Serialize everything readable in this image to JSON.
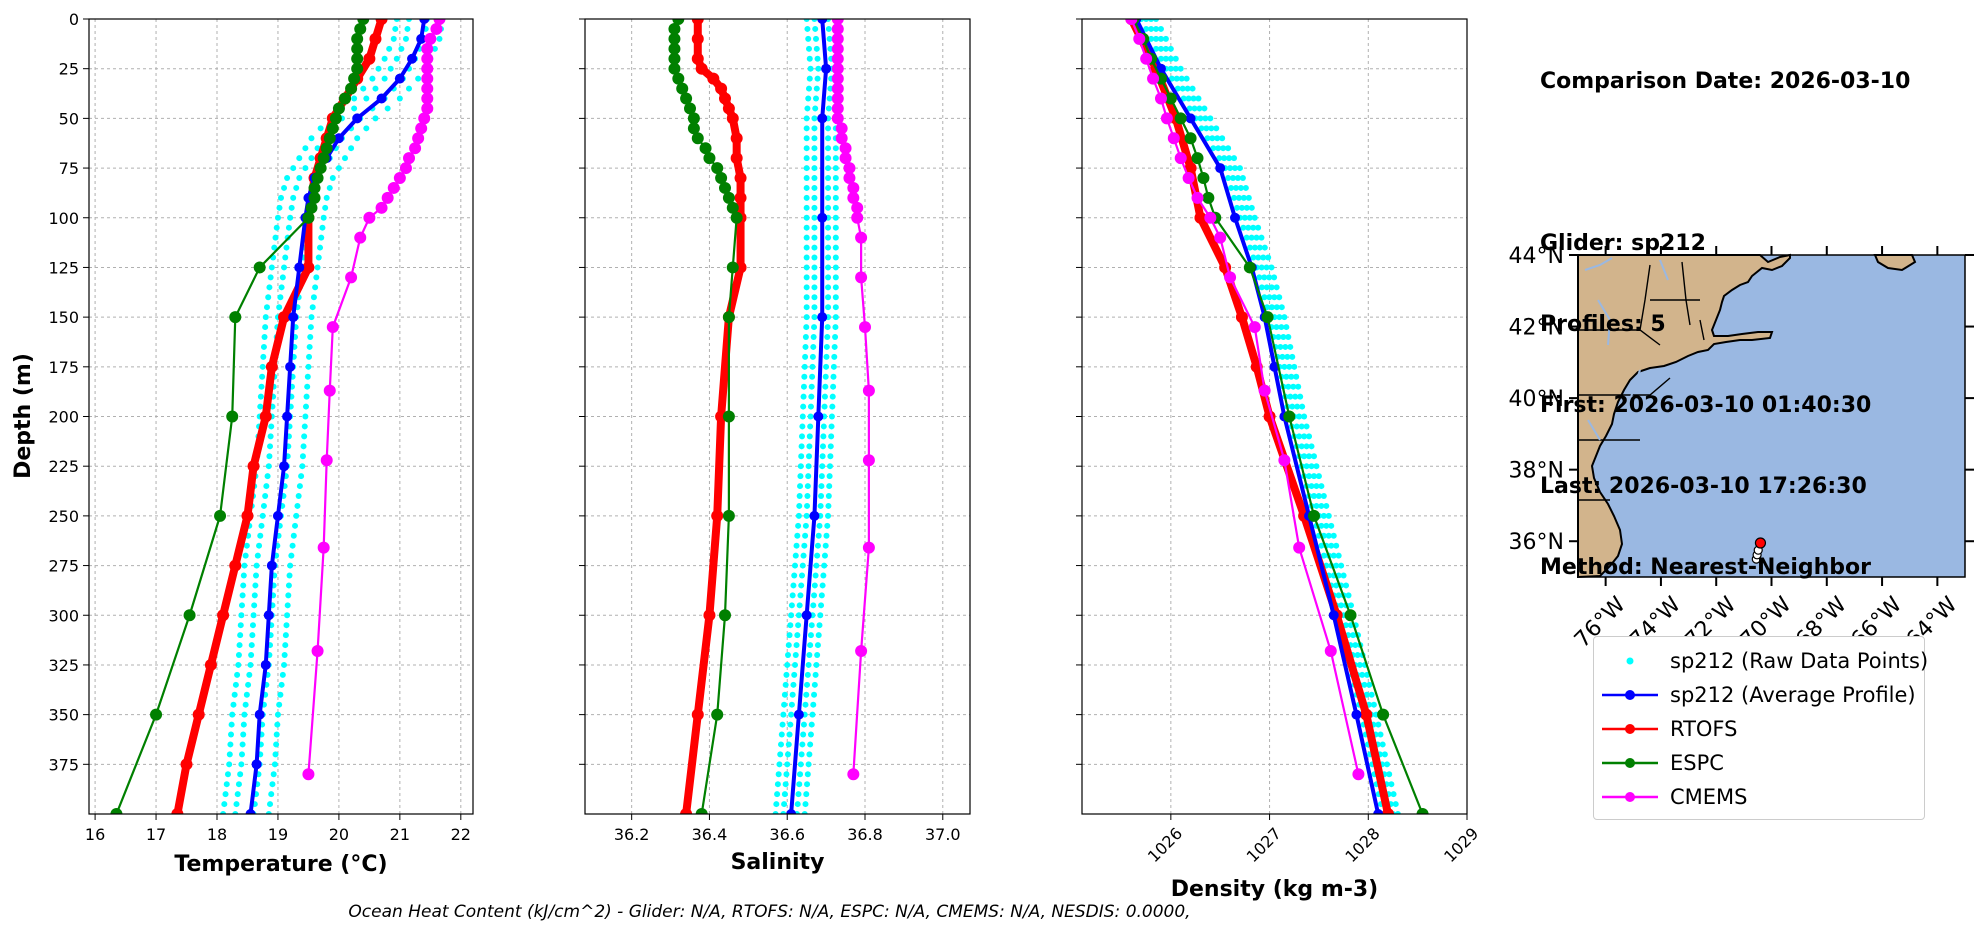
{
  "info": {
    "comparison_date": "Comparison Date: 2026-03-10",
    "glider": "Glider: sp212",
    "profiles": "Profiles: 5",
    "first": "First: 2026-03-10 01:40:30",
    "last": "Last: 2026-03-10 17:26:30",
    "method": "Method: Nearest-Neighbor"
  },
  "footer": "Ocean Heat Content (kJ/cm^2) - Glider: N/A,  RTOFS: N/A,  ESPC: N/A,  CMEMS: N/A,  NESDIS: 0.0000,",
  "colors": {
    "raw": "#00ffff",
    "avg": "#0000ff",
    "rtofs": "#ff0000",
    "espc": "#008000",
    "cmems": "#ff00ff",
    "land": "#d2b48c",
    "ocean": "#9ab8e2"
  },
  "legend": [
    {
      "key": "raw",
      "label": "sp212 (Raw Data Points)"
    },
    {
      "key": "avg",
      "label": "sp212 (Average Profile)"
    },
    {
      "key": "rtofs",
      "label": "RTOFS"
    },
    {
      "key": "espc",
      "label": "ESPC"
    },
    {
      "key": "cmems",
      "label": "CMEMS"
    }
  ],
  "chart_data": [
    {
      "type": "line",
      "xlabel": "Temperature (°C)",
      "ylabel": "Depth (m)",
      "xlim": [
        15.9,
        22.2
      ],
      "ylim": [
        400,
        0
      ],
      "xticks": [
        "16",
        "17",
        "18",
        "19",
        "20",
        "21",
        "22"
      ],
      "yticks": [
        "0",
        "25",
        "50",
        "75",
        "100",
        "125",
        "150",
        "175",
        "200",
        "225",
        "250",
        "275",
        "300",
        "325",
        "350",
        "375"
      ],
      "grid": true,
      "series": [
        {
          "name": "sp212 (Average Profile)",
          "key": "avg",
          "depth": [
            0,
            10,
            20,
            30,
            40,
            50,
            60,
            70,
            80,
            90,
            100,
            125,
            150,
            175,
            200,
            225,
            250,
            275,
            300,
            325,
            350,
            375,
            400
          ],
          "values": [
            21.4,
            21.35,
            21.2,
            21.0,
            20.7,
            20.3,
            20.0,
            19.8,
            19.6,
            19.5,
            19.45,
            19.35,
            19.25,
            19.2,
            19.15,
            19.1,
            19.0,
            18.9,
            18.85,
            18.8,
            18.7,
            18.65,
            18.55
          ]
        },
        {
          "name": "RTOFS",
          "key": "rtofs",
          "depth": [
            0,
            10,
            20,
            30,
            40,
            50,
            60,
            70,
            80,
            90,
            100,
            125,
            150,
            175,
            200,
            225,
            250,
            275,
            300,
            325,
            350,
            375,
            400
          ],
          "values": [
            20.7,
            20.6,
            20.5,
            20.3,
            20.1,
            19.9,
            19.8,
            19.7,
            19.6,
            19.55,
            19.5,
            19.5,
            19.1,
            18.9,
            18.8,
            18.6,
            18.5,
            18.3,
            18.1,
            17.9,
            17.7,
            17.5,
            17.35
          ]
        },
        {
          "name": "ESPC",
          "key": "espc",
          "depth": [
            0,
            5,
            10,
            15,
            20,
            25,
            30,
            35,
            40,
            45,
            50,
            55,
            60,
            65,
            70,
            75,
            80,
            85,
            90,
            95,
            100,
            125,
            150,
            200,
            250,
            300,
            350,
            400
          ],
          "values": [
            20.4,
            20.35,
            20.3,
            20.3,
            20.3,
            20.3,
            20.25,
            20.2,
            20.1,
            20.0,
            19.95,
            19.9,
            19.85,
            19.8,
            19.75,
            19.7,
            19.65,
            19.6,
            19.6,
            19.55,
            19.5,
            18.7,
            18.3,
            18.25,
            18.05,
            17.55,
            17.0,
            16.35
          ]
        },
        {
          "name": "CMEMS",
          "key": "cmems",
          "depth": [
            0,
            5,
            10,
            15,
            20,
            25,
            30,
            35,
            40,
            45,
            50,
            55,
            60,
            65,
            70,
            75,
            80,
            85,
            90,
            95,
            100,
            110,
            130,
            155,
            187,
            222,
            266,
            318,
            380
          ],
          "values": [
            21.65,
            21.6,
            21.5,
            21.45,
            21.45,
            21.45,
            21.45,
            21.45,
            21.45,
            21.45,
            21.4,
            21.35,
            21.3,
            21.25,
            21.15,
            21.1,
            21.0,
            20.9,
            20.8,
            20.7,
            20.5,
            20.35,
            20.2,
            19.9,
            19.85,
            19.8,
            19.75,
            19.65,
            19.5
          ]
        }
      ],
      "raw_offsets": [
        -0.45,
        -0.25,
        0.05,
        0.3
      ]
    },
    {
      "type": "line",
      "xlabel": "Salinity",
      "ylabel": "",
      "xlim": [
        36.08,
        37.07
      ],
      "ylim": [
        400,
        0
      ],
      "xticks": [
        "36.2",
        "36.4",
        "36.6",
        "36.8",
        "37.0"
      ],
      "grid": true,
      "series": [
        {
          "name": "sp212 (Average Profile)",
          "key": "avg",
          "depth": [
            0,
            25,
            50,
            100,
            150,
            200,
            250,
            300,
            350,
            400
          ],
          "values": [
            36.69,
            36.7,
            36.69,
            36.69,
            36.69,
            36.68,
            36.67,
            36.65,
            36.63,
            36.61
          ]
        },
        {
          "name": "RTOFS",
          "key": "rtofs",
          "depth": [
            0,
            10,
            20,
            25,
            30,
            35,
            40,
            45,
            50,
            60,
            70,
            80,
            90,
            100,
            125,
            150,
            200,
            250,
            300,
            350,
            400
          ],
          "values": [
            36.37,
            36.37,
            36.37,
            36.38,
            36.41,
            36.43,
            36.44,
            36.45,
            36.46,
            36.47,
            36.47,
            36.48,
            36.48,
            36.48,
            36.48,
            36.45,
            36.43,
            36.42,
            36.4,
            36.37,
            36.34
          ]
        },
        {
          "name": "ESPC",
          "key": "espc",
          "depth": [
            0,
            5,
            10,
            15,
            20,
            25,
            30,
            35,
            40,
            45,
            50,
            55,
            60,
            65,
            70,
            75,
            80,
            85,
            90,
            95,
            100,
            125,
            150,
            200,
            250,
            300,
            350,
            400
          ],
          "values": [
            36.32,
            36.31,
            36.31,
            36.31,
            36.31,
            36.31,
            36.32,
            36.33,
            36.34,
            36.35,
            36.36,
            36.36,
            36.37,
            36.39,
            36.4,
            36.42,
            36.43,
            36.44,
            36.45,
            36.46,
            36.47,
            36.46,
            36.45,
            36.45,
            36.45,
            36.44,
            36.42,
            36.38
          ]
        },
        {
          "name": "CMEMS",
          "key": "cmems",
          "depth": [
            0,
            5,
            10,
            15,
            20,
            25,
            30,
            35,
            40,
            45,
            50,
            55,
            60,
            65,
            70,
            75,
            80,
            85,
            90,
            95,
            100,
            110,
            130,
            155,
            187,
            222,
            266,
            318,
            380
          ],
          "values": [
            36.73,
            36.73,
            36.73,
            36.73,
            36.73,
            36.73,
            36.73,
            36.73,
            36.73,
            36.73,
            36.73,
            36.74,
            36.74,
            36.75,
            36.75,
            36.76,
            36.76,
            36.77,
            36.77,
            36.78,
            36.78,
            36.79,
            36.79,
            36.8,
            36.81,
            36.81,
            36.81,
            36.79,
            36.77
          ]
        }
      ],
      "raw_offsets": [
        -0.04,
        -0.02,
        0.015,
        0.035
      ]
    },
    {
      "type": "line",
      "xlabel": "Density (kg m-3)",
      "ylabel": "",
      "xlim": [
        1025.1,
        1029.0
      ],
      "ylim": [
        400,
        0
      ],
      "xticks": [
        "1026",
        "1027",
        "1028",
        "1029"
      ],
      "grid": true,
      "series": [
        {
          "name": "sp212 (Average Profile)",
          "key": "avg",
          "depth": [
            0,
            25,
            50,
            75,
            100,
            125,
            150,
            175,
            200,
            250,
            300,
            350,
            400
          ],
          "values": [
            1025.65,
            1025.9,
            1026.2,
            1026.5,
            1026.65,
            1026.82,
            1026.95,
            1027.05,
            1027.15,
            1027.4,
            1027.65,
            1027.88,
            1028.1
          ]
        },
        {
          "name": "RTOFS",
          "key": "rtofs",
          "depth": [
            0,
            25,
            50,
            75,
            100,
            125,
            150,
            175,
            200,
            250,
            300,
            350,
            400
          ],
          "values": [
            1025.6,
            1025.85,
            1026.05,
            1026.2,
            1026.3,
            1026.55,
            1026.72,
            1026.87,
            1027.0,
            1027.35,
            1027.68,
            1027.98,
            1028.2
          ]
        },
        {
          "name": "ESPC",
          "key": "espc",
          "depth": [
            0,
            10,
            20,
            30,
            40,
            50,
            60,
            70,
            80,
            90,
            100,
            125,
            150,
            200,
            250,
            300,
            350,
            400
          ],
          "values": [
            1025.62,
            1025.72,
            1025.8,
            1025.9,
            1026.0,
            1026.1,
            1026.2,
            1026.27,
            1026.33,
            1026.38,
            1026.45,
            1026.8,
            1026.98,
            1027.2,
            1027.45,
            1027.82,
            1028.15,
            1028.55
          ]
        },
        {
          "name": "CMEMS",
          "key": "cmems",
          "depth": [
            0,
            10,
            20,
            30,
            40,
            50,
            60,
            70,
            80,
            90,
            100,
            110,
            130,
            155,
            187,
            222,
            266,
            318,
            380
          ],
          "values": [
            1025.6,
            1025.68,
            1025.75,
            1025.82,
            1025.9,
            1025.96,
            1026.03,
            1026.1,
            1026.18,
            1026.27,
            1026.4,
            1026.5,
            1026.6,
            1026.85,
            1026.95,
            1027.15,
            1027.3,
            1027.62,
            1027.9
          ]
        }
      ],
      "raw_offsets": [
        0.05,
        0.1,
        0.15,
        0.2
      ]
    },
    {
      "type": "map",
      "lat_ticks": [
        "44°N",
        "42°N",
        "40°N",
        "38°N",
        "36°N"
      ],
      "lon_ticks": [
        "76°W",
        "74°W",
        "72°W",
        "70°W",
        "68°W",
        "66°W",
        "64°W"
      ],
      "lat_range": [
        35,
        44
      ],
      "lon_range": [
        -77,
        -63
      ],
      "glider_positions": [
        [
          35.95,
          -70.4
        ],
        [
          35.75,
          -70.48
        ],
        [
          35.62,
          -70.52
        ],
        [
          35.5,
          -70.55
        ]
      ]
    }
  ]
}
